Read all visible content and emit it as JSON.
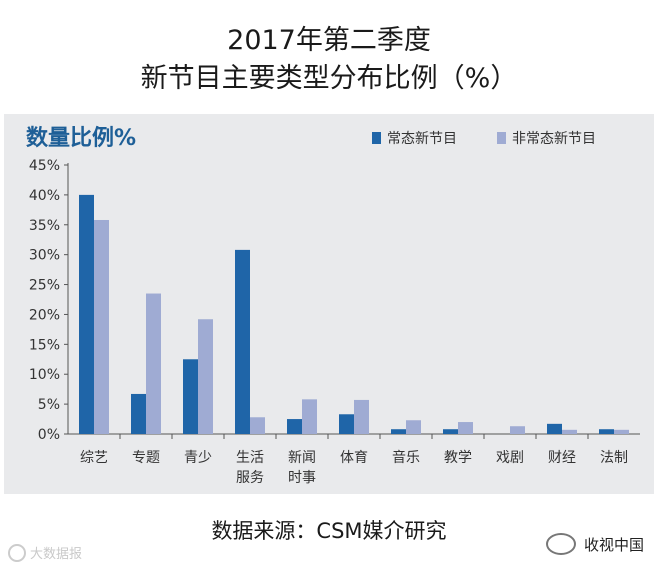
{
  "title_line1": "2017年第二季度",
  "title_line2": "新节目主要类型分布比例（%）",
  "source": "数据来源：CSM媒介研究",
  "watermark_left": "大数据报",
  "watermark_right": "收视中国",
  "chart_data": {
    "type": "bar",
    "ylabel": "数量比例%",
    "ylim": [
      0,
      45
    ],
    "yticks": [
      "0%",
      "5%",
      "10%",
      "15%",
      "20%",
      "25%",
      "30%",
      "35%",
      "40%",
      "45%"
    ],
    "grid": false,
    "legend_position": "top-right",
    "categories": [
      [
        "综艺"
      ],
      [
        "专题"
      ],
      [
        "青少"
      ],
      [
        "生活",
        "服务"
      ],
      [
        "新闻",
        "时事"
      ],
      [
        "体育"
      ],
      [
        "音乐"
      ],
      [
        "教学"
      ],
      [
        "戏剧"
      ],
      [
        "财经"
      ],
      [
        "法制"
      ]
    ],
    "series": [
      {
        "name": "常态新节目",
        "color": "#1f65a8",
        "values": [
          40,
          6.7,
          12.5,
          30.8,
          2.5,
          3.3,
          0.8,
          0.8,
          0,
          1.7,
          0.8
        ]
      },
      {
        "name": "非常态新节目",
        "color": "#9fabd3",
        "values": [
          35.8,
          23.5,
          19.2,
          2.8,
          5.8,
          5.7,
          2.3,
          2.0,
          1.3,
          0.7,
          0.7
        ]
      }
    ]
  }
}
